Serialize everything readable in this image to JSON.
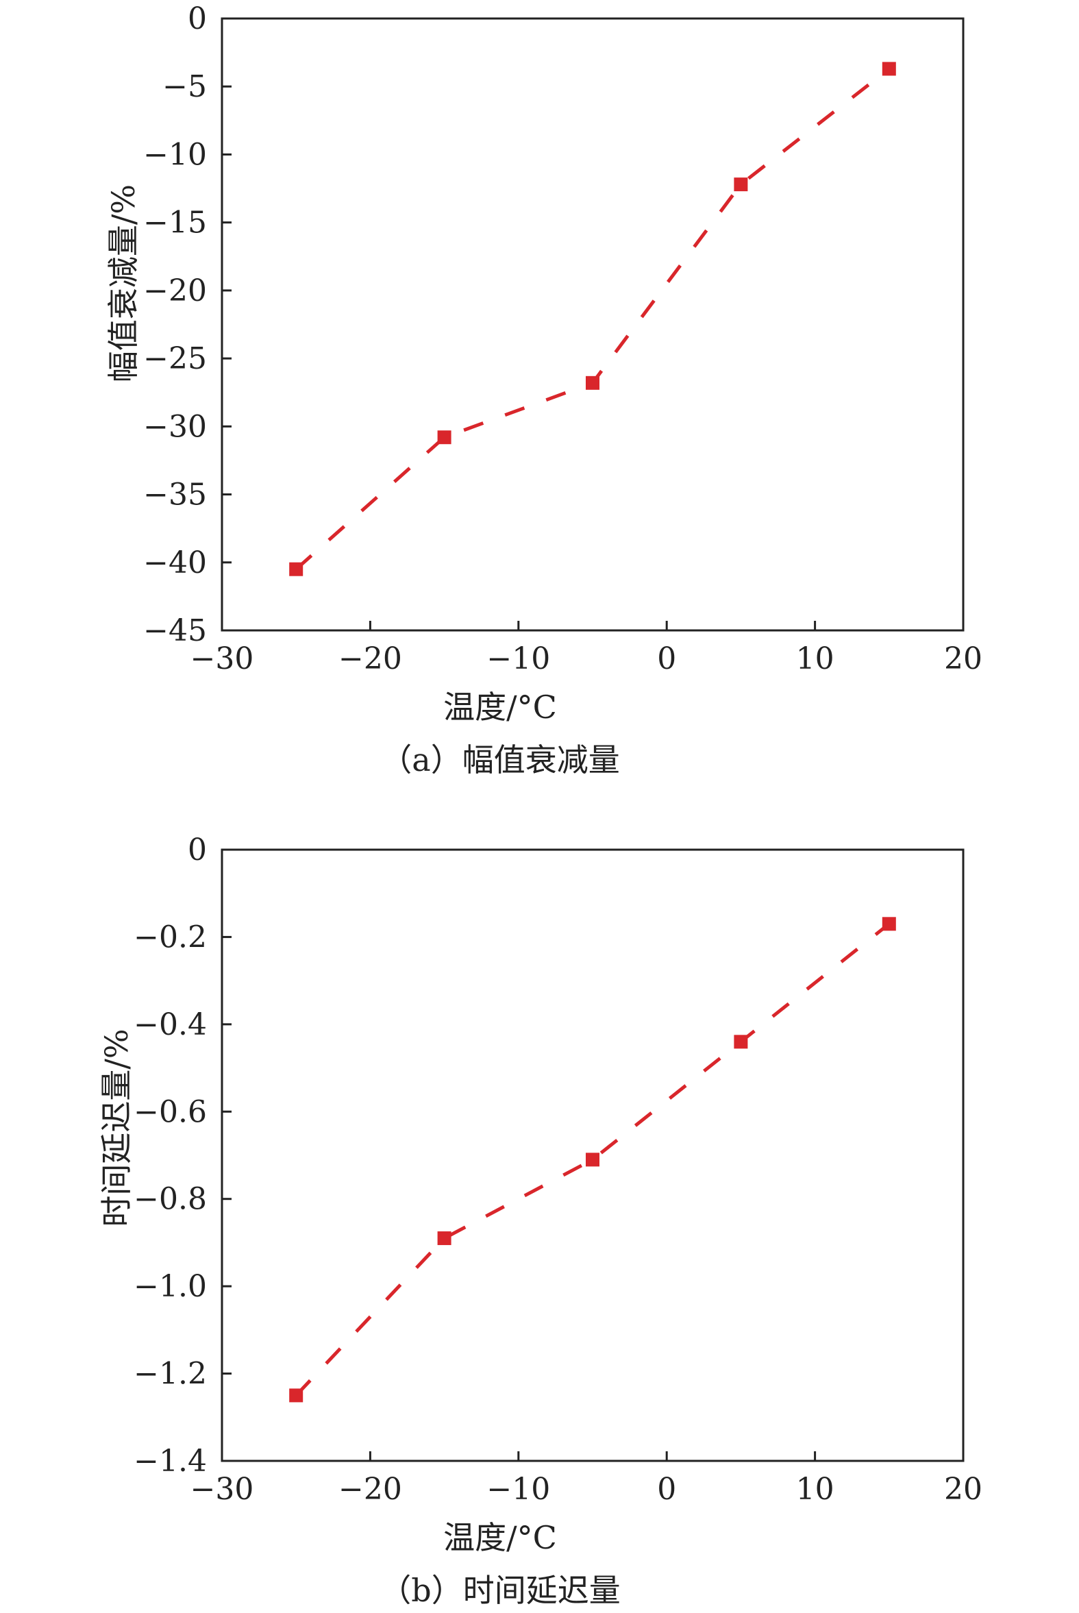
{
  "chart_data": [
    {
      "type": "line",
      "caption": "（a）幅值衰减量",
      "xlabel": "温度/°C",
      "ylabel": "幅值衰减量/%",
      "xlim": [
        -30,
        20
      ],
      "ylim": [
        -45,
        0
      ],
      "xticks": [
        -30,
        -20,
        -10,
        0,
        10,
        20
      ],
      "yticks": [
        0,
        -5,
        -10,
        -15,
        -20,
        -25,
        -30,
        -35,
        -40,
        -45
      ],
      "xtick_labels": [
        "−30",
        "−20",
        "−10",
        "0",
        "10",
        "20"
      ],
      "ytick_labels": [
        "0",
        "−5",
        "−10",
        "−15",
        "−20",
        "−25",
        "−30",
        "−35",
        "−40",
        "−45"
      ],
      "grid": false,
      "marker": "square",
      "line_style": "dashed",
      "color": "#d9262b",
      "x": [
        -25,
        -15,
        -5,
        5,
        15
      ],
      "y": [
        -40.5,
        -30.8,
        -26.8,
        -12.2,
        -3.7
      ]
    },
    {
      "type": "line",
      "caption": "（b）时间延迟量",
      "xlabel": "温度/°C",
      "ylabel": "时间延迟量/%",
      "xlim": [
        -30,
        20
      ],
      "ylim": [
        -1.4,
        0
      ],
      "xticks": [
        -30,
        -20,
        -10,
        0,
        10,
        20
      ],
      "yticks": [
        0,
        -0.2,
        -0.4,
        -0.6,
        -0.8,
        -1.0,
        -1.2,
        -1.4
      ],
      "xtick_labels": [
        "−30",
        "−20",
        "−10",
        "0",
        "10",
        "20"
      ],
      "ytick_labels": [
        "0",
        "−0.2",
        "−0.4",
        "−0.6",
        "−0.8",
        "−1.0",
        "−1.2",
        "−1.4"
      ],
      "grid": false,
      "marker": "square",
      "line_style": "dashed",
      "color": "#d9262b",
      "x": [
        -25,
        -15,
        -5,
        5,
        15
      ],
      "y": [
        -1.25,
        -0.89,
        -0.71,
        -0.44,
        -0.17
      ]
    }
  ]
}
